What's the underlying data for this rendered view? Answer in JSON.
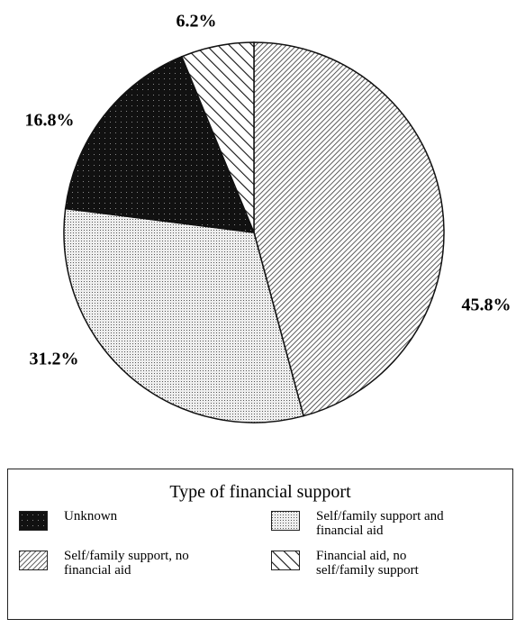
{
  "chart_data": {
    "type": "pie",
    "legend_title": "Type of financial support",
    "categories": [
      "Self/family support, no financial aid",
      "Self/family support and financial aid",
      "Unknown",
      "Financial aid, no self/family support"
    ],
    "values": [
      45.8,
      31.2,
      16.8,
      6.2
    ],
    "value_labels": [
      "45.8%",
      "31.2%",
      "16.8%",
      "6.2%"
    ]
  }
}
